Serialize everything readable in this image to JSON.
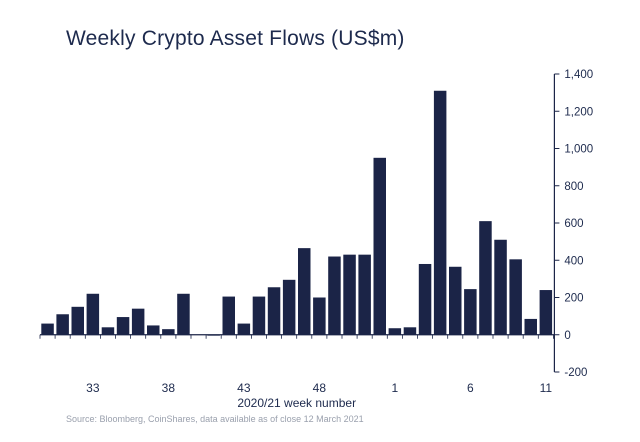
{
  "chart_data": {
    "type": "bar",
    "title": "Weekly Crypto Asset Flows (US$m)",
    "xlabel": "2020/21 week number",
    "ylabel": "",
    "source": "Source: Bloomberg, CoinShares, data available as of close 12 March 2021",
    "ylim": [
      -200,
      1400
    ],
    "yticks": [
      -200,
      0,
      200,
      400,
      600,
      800,
      1000,
      1200,
      1400
    ],
    "ytick_labels": [
      "-200",
      "0",
      "200",
      "400",
      "600",
      "800",
      "1,000",
      "1,200",
      "1,400"
    ],
    "x_tick_labels": [
      {
        "label": "33",
        "index": 3
      },
      {
        "label": "38",
        "index": 8
      },
      {
        "label": "43",
        "index": 13
      },
      {
        "label": "48",
        "index": 18
      },
      {
        "label": "1",
        "index": 23
      },
      {
        "label": "6",
        "index": 28
      },
      {
        "label": "11",
        "index": 33
      }
    ],
    "values": [
      60,
      110,
      150,
      220,
      40,
      95,
      140,
      50,
      30,
      220,
      0,
      -5,
      205,
      60,
      205,
      255,
      295,
      465,
      200,
      420,
      430,
      430,
      950,
      35,
      40,
      380,
      1310,
      365,
      245,
      610,
      510,
      405,
      85,
      240
    ],
    "bar_color": "#1b2447",
    "axis_color": "#1b2447",
    "grid": false
  }
}
